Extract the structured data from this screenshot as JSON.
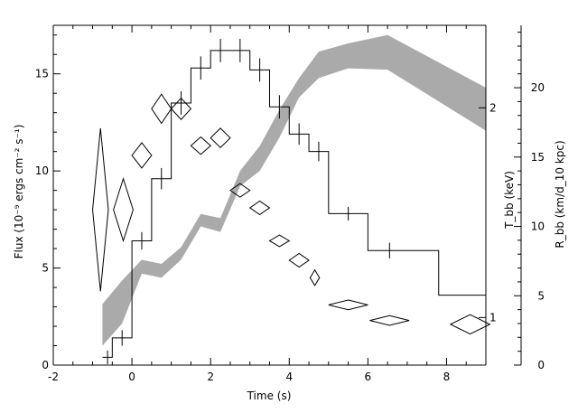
{
  "chart_data": {
    "type": "line",
    "xlabel": "Time (s)",
    "ylabel_left": "Flux (10⁻⁹ ergs cm⁻² s⁻¹)",
    "ylabel_right_inner": "T_bb (keV)",
    "ylabel_right_outer": "R_bb (km/d_10 kpc)",
    "xlim": [
      -2,
      9
    ],
    "ylim": [
      0,
      17.5
    ],
    "x_ticks": [
      -2,
      0,
      2,
      4,
      6,
      8
    ],
    "y_ticks": [
      0,
      5,
      10,
      15
    ],
    "t_ticks": [
      1,
      2
    ],
    "r_lim": [
      0,
      24.5
    ],
    "r_ticks": [
      0,
      5,
      10,
      15,
      20
    ],
    "flux_steps": [
      {
        "x0": -0.75,
        "x1": -0.5,
        "y": 0.4
      },
      {
        "x0": -0.5,
        "x1": 0.0,
        "y": 1.4
      },
      {
        "x0": 0.0,
        "x1": 0.5,
        "y": 6.4
      },
      {
        "x0": 0.5,
        "x1": 1.0,
        "y": 9.6
      },
      {
        "x0": 1.0,
        "x1": 1.5,
        "y": 13.5
      },
      {
        "x0": 1.5,
        "x1": 2.0,
        "y": 15.3
      },
      {
        "x0": 2.0,
        "x1": 2.5,
        "y": 16.2
      },
      {
        "x0": 2.5,
        "x1": 3.0,
        "y": 16.2
      },
      {
        "x0": 3.0,
        "x1": 3.5,
        "y": 15.2
      },
      {
        "x0": 3.5,
        "x1": 4.0,
        "y": 13.3
      },
      {
        "x0": 4.0,
        "x1": 4.5,
        "y": 11.9
      },
      {
        "x0": 4.5,
        "x1": 5.0,
        "y": 11.0
      },
      {
        "x0": 5.0,
        "x1": 6.0,
        "y": 7.8
      },
      {
        "x0": 6.0,
        "x1": 7.8,
        "y": 5.9
      },
      {
        "x0": 7.8,
        "x1": 9.0,
        "y": 3.6
      }
    ],
    "flux_errors": [
      {
        "x": -0.62,
        "y": 0.4,
        "err": 0.35
      },
      {
        "x": -0.25,
        "y": 1.4,
        "err": 0.4
      },
      {
        "x": 0.25,
        "y": 6.4,
        "err": 0.45
      },
      {
        "x": 0.75,
        "y": 9.6,
        "err": 0.55
      },
      {
        "x": 1.25,
        "y": 13.5,
        "err": 0.6
      },
      {
        "x": 1.75,
        "y": 15.3,
        "err": 0.6
      },
      {
        "x": 2.25,
        "y": 16.2,
        "err": 0.6
      },
      {
        "x": 2.75,
        "y": 16.2,
        "err": 0.6
      },
      {
        "x": 3.25,
        "y": 15.2,
        "err": 0.6
      },
      {
        "x": 3.75,
        "y": 13.3,
        "err": 0.6
      },
      {
        "x": 4.25,
        "y": 11.9,
        "err": 0.55
      },
      {
        "x": 4.75,
        "y": 11.0,
        "err": 0.5
      },
      {
        "x": 5.5,
        "y": 7.8,
        "err": 0.35
      },
      {
        "x": 6.55,
        "y": 5.9,
        "err": 0.4
      }
    ],
    "temperature_diamonds": [
      {
        "x": -0.8,
        "y": 8.0,
        "dx": 0.2,
        "dy": 4.2
      },
      {
        "x": -0.22,
        "y": 8.0,
        "dx": 0.25,
        "dy": 1.6
      },
      {
        "x": 0.25,
        "y": 10.8,
        "dx": 0.25,
        "dy": 0.65
      },
      {
        "x": 0.75,
        "y": 13.2,
        "dx": 0.25,
        "dy": 0.75
      },
      {
        "x": 1.25,
        "y": 13.2,
        "dx": 0.25,
        "dy": 0.55
      },
      {
        "x": 1.75,
        "y": 11.3,
        "dx": 0.25,
        "dy": 0.45
      },
      {
        "x": 2.25,
        "y": 11.7,
        "dx": 0.25,
        "dy": 0.5
      },
      {
        "x": 2.75,
        "y": 9.0,
        "dx": 0.25,
        "dy": 0.35
      },
      {
        "x": 3.25,
        "y": 8.1,
        "dx": 0.25,
        "dy": 0.35
      },
      {
        "x": 3.75,
        "y": 6.4,
        "dx": 0.25,
        "dy": 0.3
      },
      {
        "x": 4.25,
        "y": 5.4,
        "dx": 0.25,
        "dy": 0.35
      },
      {
        "x": 4.65,
        "y": 4.5,
        "dx": 0.12,
        "dy": 0.4
      },
      {
        "x": 5.5,
        "y": 3.1,
        "dx": 0.5,
        "dy": 0.25
      },
      {
        "x": 6.55,
        "y": 2.3,
        "dx": 0.5,
        "dy": 0.25
      },
      {
        "x": 8.6,
        "y": 2.1,
        "dx": 0.5,
        "dy": 0.5
      }
    ],
    "radius_band": {
      "x": [
        -0.75,
        -0.25,
        0.25,
        0.75,
        1.25,
        1.75,
        2.25,
        2.75,
        3.25,
        3.75,
        4.25,
        4.75,
        5.5,
        6.5,
        9.0
      ],
      "lower": [
        1.4,
        3.0,
        6.6,
        6.3,
        7.6,
        10.0,
        9.6,
        12.9,
        14.0,
        16.4,
        19.3,
        20.7,
        21.4,
        21.3,
        16.9
      ],
      "upper": [
        4.4,
        6.1,
        7.6,
        7.3,
        8.5,
        10.9,
        10.6,
        14.0,
        15.8,
        18.4,
        20.7,
        22.6,
        23.2,
        23.8,
        20.0
      ]
    }
  }
}
